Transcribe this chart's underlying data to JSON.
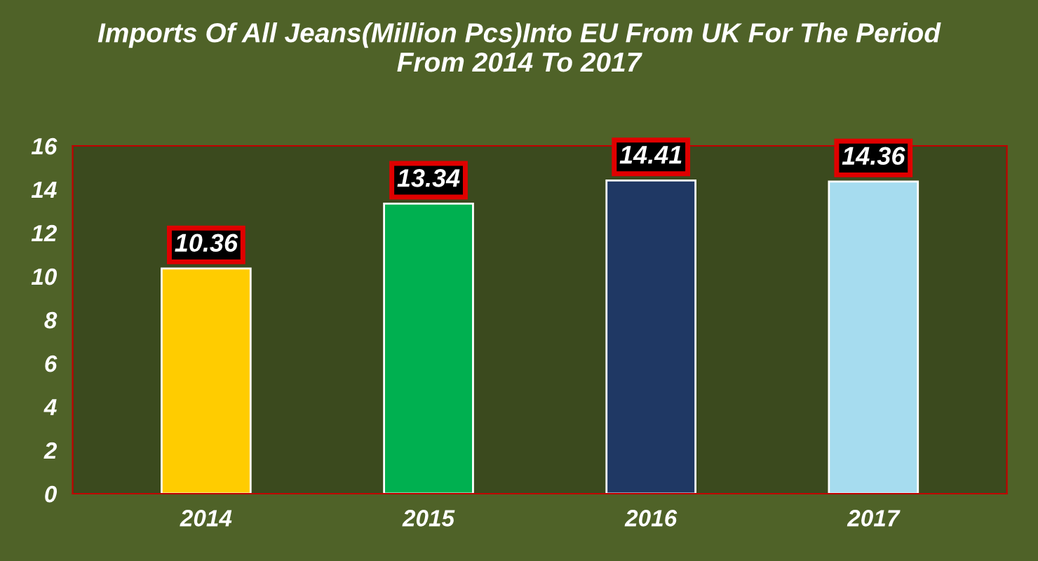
{
  "chart_data": {
    "type": "bar",
    "title": "Imports Of All Jeans(Million Pcs)Into EU From UK For The Period\nFrom 2014 To 2017",
    "categories": [
      "2014",
      "2015",
      "2016",
      "2017"
    ],
    "values": [
      10.36,
      13.34,
      14.41,
      14.36
    ],
    "colors": [
      "#ffcc00",
      "#00b050",
      "#1f3864",
      "#a6dcef"
    ],
    "ylim": [
      0,
      16
    ],
    "yticks": [
      0,
      2,
      4,
      6,
      8,
      10,
      12,
      14,
      16
    ],
    "data_labels": true,
    "grid": false,
    "legend": false
  }
}
